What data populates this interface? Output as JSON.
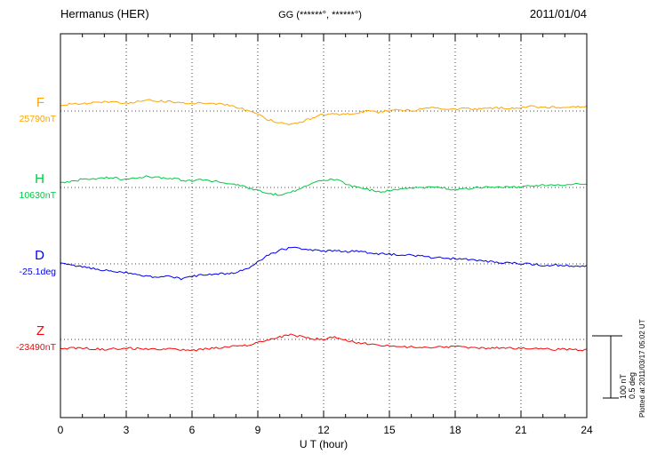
{
  "header": {
    "title": "Hermanus (HER)",
    "coords": "GG (******°, ******°)",
    "date": "2011/01/04"
  },
  "axis": {
    "xlabel": "U T (hour)"
  },
  "scale_bar": {
    "nt": "100 nT",
    "deg": "0.5 deg"
  },
  "footer_note": "Plotted at 2011/03/17 05:02 UT",
  "chart_data": {
    "type": "line",
    "title": "Hermanus (HER) magnetogram",
    "date": "2011/01/04",
    "xlabel": "U T (hour)",
    "xlim": [
      0,
      24
    ],
    "x_ticks": [
      0,
      3,
      6,
      9,
      12,
      15,
      18,
      21,
      24
    ],
    "x_start_hours": 0,
    "x_step_hours": 0.5,
    "grid": "dotted vertical lines every 3 hours; dotted horizontal baseline for each trace",
    "legend_position": "left margin, one colored label per trace",
    "scale": {
      "nT_per_bar": 100,
      "deg_per_bar": 0.5
    },
    "series": [
      {
        "name": "F",
        "unit": "nT",
        "baseline_label": "25790nT",
        "baseline_value": 25790,
        "color": "#FFA500",
        "values_offset": [
          10,
          11,
          12,
          13,
          15,
          14,
          13,
          15,
          17,
          16,
          15,
          13,
          12,
          13,
          12,
          10,
          7,
          1,
          -6,
          -14,
          -19,
          -21,
          -17,
          -11,
          -5,
          -4,
          -6,
          -3,
          0,
          -2,
          1,
          2,
          1,
          3,
          5,
          4,
          3,
          4,
          3,
          4,
          5,
          4,
          6,
          7,
          5,
          6,
          6,
          7,
          7
        ]
      },
      {
        "name": "H",
        "unit": "nT",
        "baseline_label": "10630nT",
        "baseline_value": 10630,
        "color": "#00CC44",
        "values_offset": [
          7,
          10,
          13,
          14,
          16,
          15,
          13,
          15,
          18,
          16,
          15,
          12,
          11,
          12,
          10,
          8,
          5,
          0,
          -5,
          -10,
          -12,
          -8,
          -1,
          7,
          12,
          13,
          6,
          0,
          -3,
          -7,
          -5,
          -3,
          -1,
          0,
          1,
          -1,
          -4,
          -2,
          0,
          1,
          1,
          0,
          1,
          3,
          4,
          4,
          5,
          5,
          6
        ]
      },
      {
        "name": "D",
        "unit": "deg",
        "baseline_label": "-25.1deg",
        "baseline_value": -25.1,
        "color": "#0000EE",
        "values_offset": [
          0.0,
          -0.01,
          -0.02,
          -0.04,
          -0.05,
          -0.06,
          -0.07,
          -0.09,
          -0.1,
          -0.11,
          -0.1,
          -0.12,
          -0.1,
          -0.09,
          -0.08,
          -0.08,
          -0.07,
          -0.04,
          0.02,
          0.07,
          0.11,
          0.13,
          0.12,
          0.11,
          0.1,
          0.11,
          0.1,
          0.1,
          0.09,
          0.08,
          0.08,
          0.07,
          0.07,
          0.06,
          0.05,
          0.05,
          0.04,
          0.04,
          0.03,
          0.02,
          0.01,
          0.01,
          0.0,
          0.0,
          -0.01,
          -0.01,
          -0.01,
          -0.02,
          -0.02
        ]
      },
      {
        "name": "Z",
        "unit": "nT",
        "baseline_label": "-23490nT",
        "baseline_value": -23490,
        "color": "#FF0000",
        "values_offset": [
          -15,
          -14,
          -14,
          -15,
          -16,
          -15,
          -14,
          -15,
          -15,
          -16,
          -14,
          -17,
          -18,
          -16,
          -14,
          -13,
          -11,
          -9,
          -5,
          -1,
          4,
          8,
          4,
          1,
          0,
          4,
          -1,
          -5,
          -7,
          -9,
          -11,
          -12,
          -12,
          -13,
          -13,
          -12,
          -12,
          -13,
          -13,
          -14,
          -14,
          -14,
          -14,
          -15,
          -15,
          -16,
          -16,
          -17,
          -17
        ]
      }
    ]
  }
}
